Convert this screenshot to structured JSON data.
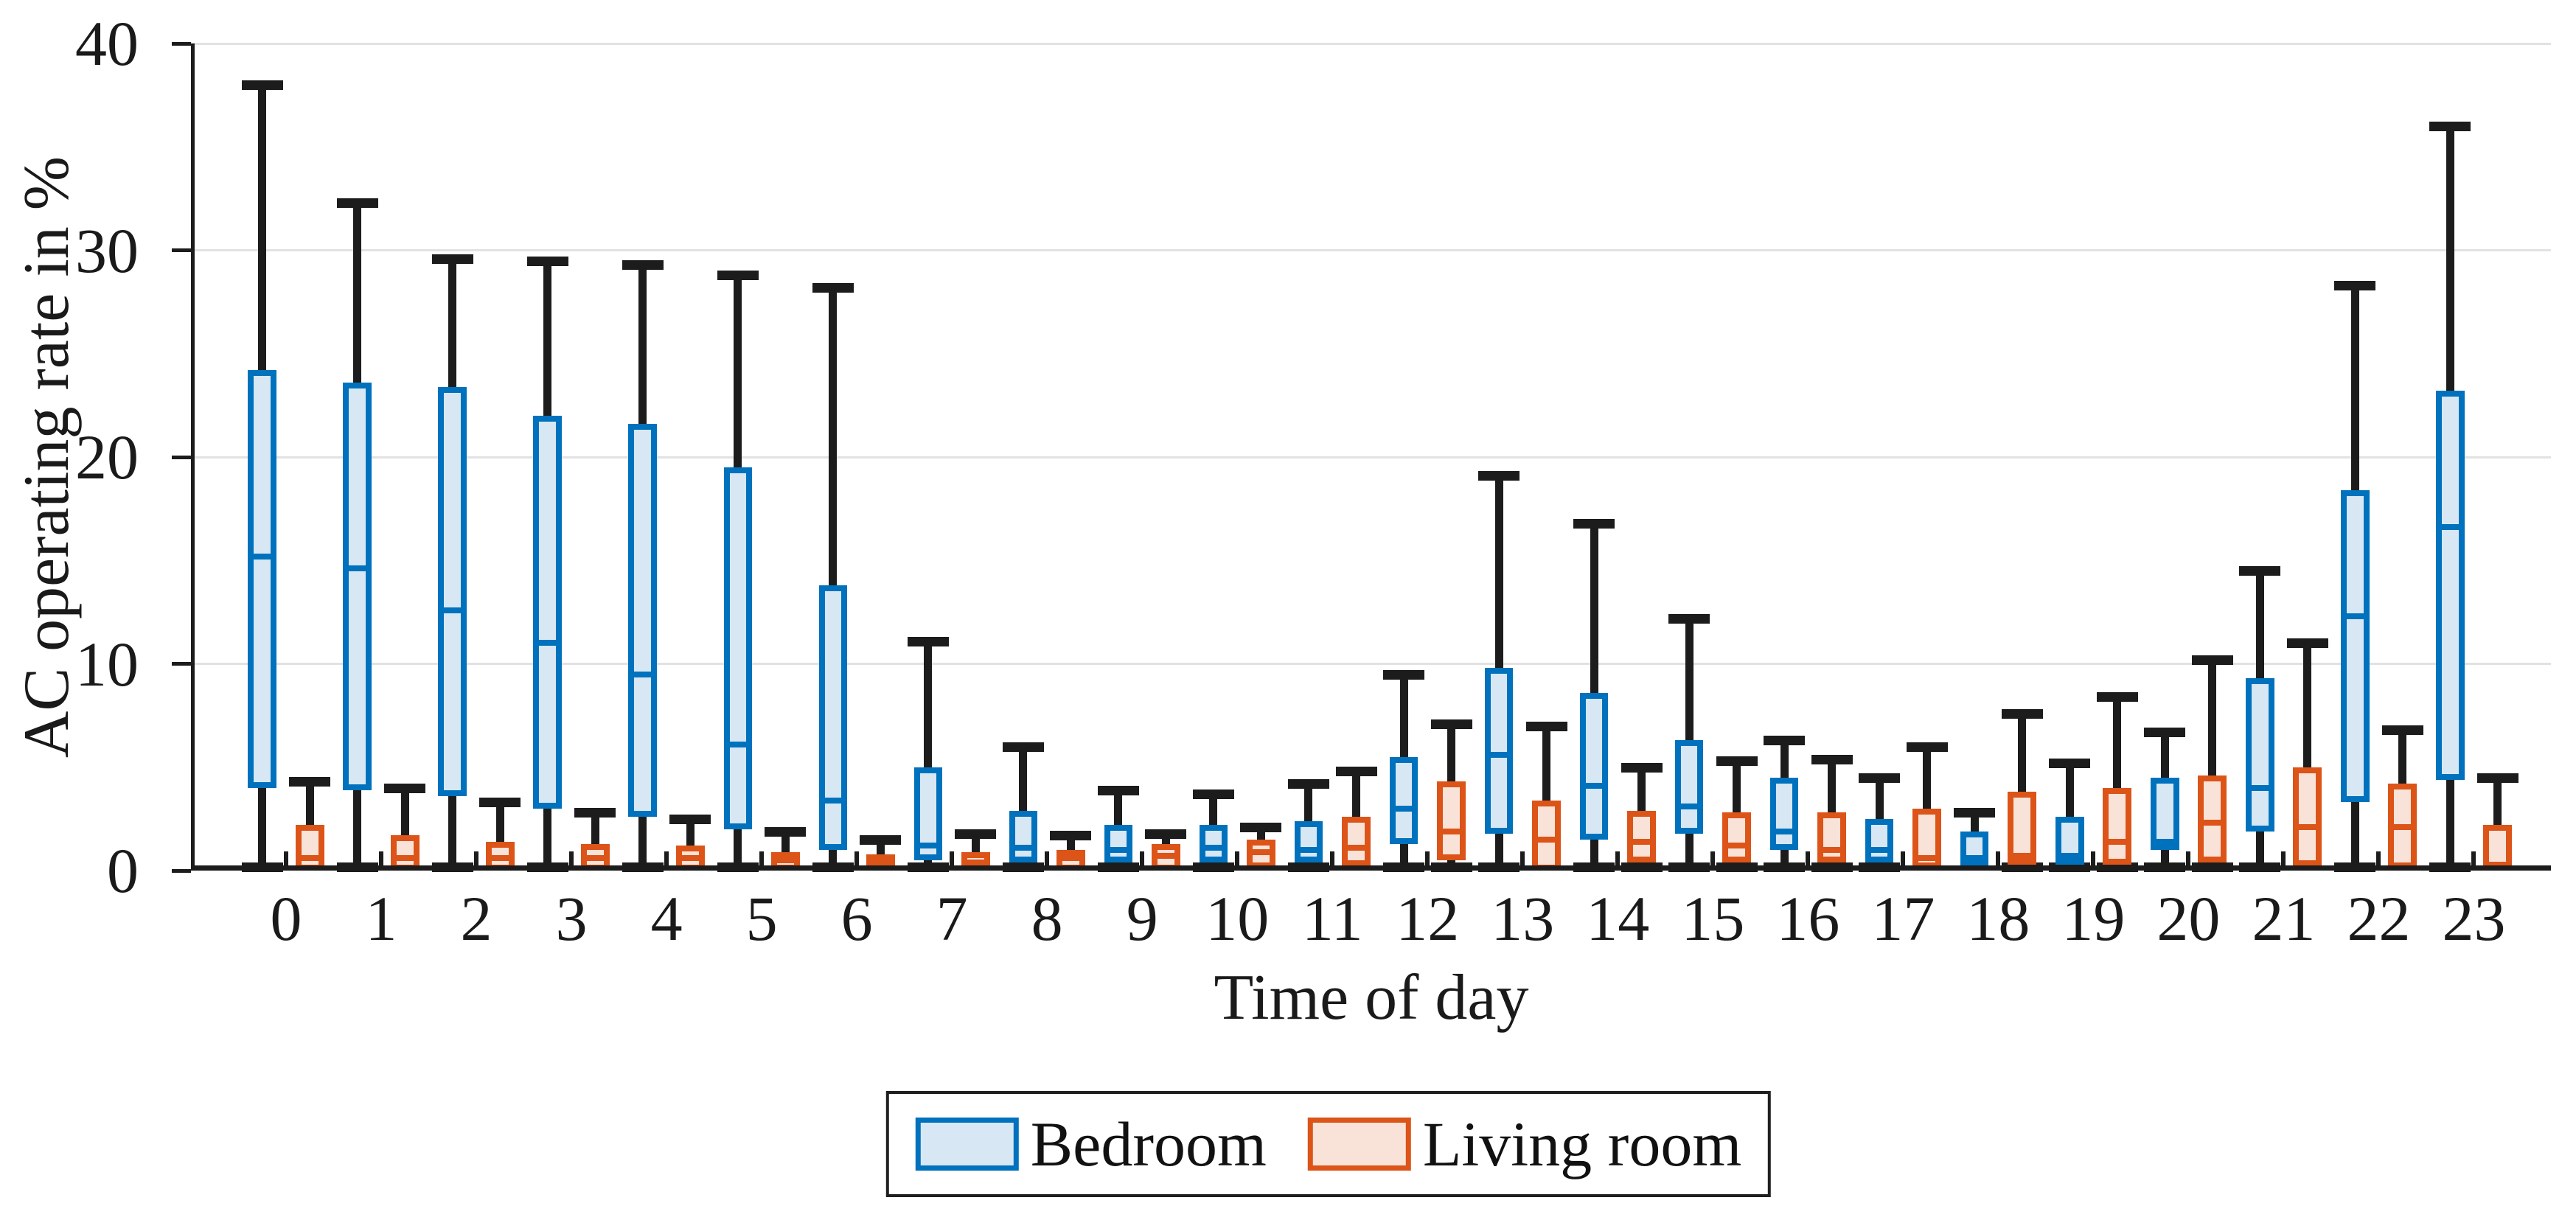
{
  "page": {
    "background": "#ffffff"
  },
  "chart_data": {
    "type": "boxplot",
    "title": "",
    "xlabel": "Time of day",
    "ylabel": "AC operating rate in %",
    "ylim": [
      0,
      40
    ],
    "yticks": [
      0,
      10,
      20,
      30,
      40
    ],
    "grid": "horizontal",
    "legend_position": "below-xlabel",
    "categories": [
      "0",
      "1",
      "2",
      "3",
      "4",
      "5",
      "6",
      "7",
      "8",
      "9",
      "10",
      "11",
      "12",
      "13",
      "14",
      "15",
      "16",
      "17",
      "18",
      "19",
      "20",
      "21",
      "22",
      "23"
    ],
    "colors": {
      "axis": "#1c1c1c",
      "whisker": "#1c1c1c",
      "gridline": "#e2e2e2",
      "bedroom_edge": "#0072BD",
      "bedroom_fill": "#D7E7F4",
      "living_edge": "#DC5418",
      "living_fill": "#F9E3D8"
    },
    "series": [
      {
        "name": "Bedroom",
        "edge_color": "#0072BD",
        "fill_color": "#D7E7F4",
        "boxes": [
          {
            "low": 0,
            "q1": 4.0,
            "median": 15.2,
            "q3": 24.2,
            "high": 38.0
          },
          {
            "low": 0,
            "q1": 3.9,
            "median": 14.6,
            "q3": 23.6,
            "high": 32.3
          },
          {
            "low": 0,
            "q1": 3.6,
            "median": 12.6,
            "q3": 23.4,
            "high": 29.6
          },
          {
            "low": 0,
            "q1": 3.0,
            "median": 11.0,
            "q3": 22.0,
            "high": 29.5
          },
          {
            "low": 0,
            "q1": 2.6,
            "median": 9.5,
            "q3": 21.6,
            "high": 29.3
          },
          {
            "low": 0,
            "q1": 2.0,
            "median": 6.1,
            "q3": 19.5,
            "high": 28.8
          },
          {
            "low": 0,
            "q1": 1.0,
            "median": 3.4,
            "q3": 13.8,
            "high": 28.2
          },
          {
            "low": 0,
            "q1": 0.5,
            "median": 1.2,
            "q3": 5.0,
            "high": 11.1
          },
          {
            "low": 0,
            "q1": 0.4,
            "median": 1.1,
            "q3": 2.9,
            "high": 6.0
          },
          {
            "low": 0,
            "q1": 0.4,
            "median": 1.0,
            "q3": 2.2,
            "high": 3.9
          },
          {
            "low": 0,
            "q1": 0.4,
            "median": 1.1,
            "q3": 2.2,
            "high": 3.7
          },
          {
            "low": 0,
            "q1": 0.4,
            "median": 1.0,
            "q3": 2.4,
            "high": 4.2
          },
          {
            "low": 0,
            "q1": 1.3,
            "median": 3.0,
            "q3": 5.5,
            "high": 9.5
          },
          {
            "low": 0,
            "q1": 1.8,
            "median": 5.6,
            "q3": 9.8,
            "high": 19.1
          },
          {
            "low": 0,
            "q1": 1.5,
            "median": 4.1,
            "q3": 8.6,
            "high": 16.8
          },
          {
            "low": 0,
            "q1": 1.8,
            "median": 3.1,
            "q3": 6.3,
            "high": 12.2
          },
          {
            "low": 0,
            "q1": 1.0,
            "median": 1.9,
            "q3": 4.5,
            "high": 6.3
          },
          {
            "low": 0,
            "q1": 0.4,
            "median": 1.0,
            "q3": 2.5,
            "high": 4.5
          },
          {
            "low": 0,
            "q1": 0.2,
            "median": 0.6,
            "q3": 1.9,
            "high": 2.8
          },
          {
            "low": 0,
            "q1": 0.3,
            "median": 0.7,
            "q3": 2.6,
            "high": 5.2
          },
          {
            "low": 0,
            "q1": 1.0,
            "median": 1.4,
            "q3": 4.5,
            "high": 6.7
          },
          {
            "low": 0,
            "q1": 1.9,
            "median": 4.0,
            "q3": 9.3,
            "high": 14.5
          },
          {
            "low": 0,
            "q1": 3.3,
            "median": 12.3,
            "q3": 18.4,
            "high": 28.3
          },
          {
            "low": 0,
            "q1": 4.4,
            "median": 16.6,
            "q3": 23.2,
            "high": 36.0
          }
        ]
      },
      {
        "name": "Living room",
        "edge_color": "#DC5418",
        "fill_color": "#F9E3D8",
        "boxes": [
          {
            "low": 0,
            "q1": 0,
            "median": 0.6,
            "q3": 2.2,
            "high": 4.3
          },
          {
            "low": 0,
            "q1": 0,
            "median": 0.6,
            "q3": 1.7,
            "high": 4.0
          },
          {
            "low": 0,
            "q1": 0,
            "median": 0.6,
            "q3": 1.4,
            "high": 3.3
          },
          {
            "low": 0,
            "q1": 0,
            "median": 0.6,
            "q3": 1.3,
            "high": 2.8
          },
          {
            "low": 0,
            "q1": 0,
            "median": 0.6,
            "q3": 1.2,
            "high": 2.5
          },
          {
            "low": 0,
            "q1": 0,
            "median": 0.5,
            "q3": 0.9,
            "high": 1.9
          },
          {
            "low": 0,
            "q1": 0,
            "median": 0.4,
            "q3": 0.8,
            "high": 1.5
          },
          {
            "low": 0,
            "q1": 0,
            "median": 0.4,
            "q3": 0.9,
            "high": 1.8
          },
          {
            "low": 0,
            "q1": 0,
            "median": 0.6,
            "q3": 1.0,
            "high": 1.7
          },
          {
            "low": 0,
            "q1": 0,
            "median": 0.7,
            "q3": 1.3,
            "high": 1.8
          },
          {
            "low": 0,
            "q1": 0.1,
            "median": 0.9,
            "q3": 1.5,
            "high": 2.1
          },
          {
            "low": 0,
            "q1": 0.2,
            "median": 1.1,
            "q3": 2.6,
            "high": 4.8
          },
          {
            "low": 0,
            "q1": 0.5,
            "median": 1.9,
            "q3": 4.3,
            "high": 7.1
          },
          {
            "low": 0,
            "q1": 0,
            "median": 1.5,
            "q3": 3.4,
            "high": 7.0
          },
          {
            "low": 0,
            "q1": 0.4,
            "median": 1.4,
            "q3": 2.9,
            "high": 5.0
          },
          {
            "low": 0,
            "q1": 0.4,
            "median": 1.2,
            "q3": 2.8,
            "high": 5.3
          },
          {
            "low": 0,
            "q1": 0.4,
            "median": 1.0,
            "q3": 2.8,
            "high": 5.4
          },
          {
            "low": 0,
            "q1": 0.1,
            "median": 0.6,
            "q3": 3.0,
            "high": 6.0
          },
          {
            "low": 0,
            "q1": 0.3,
            "median": 0.7,
            "q3": 3.8,
            "high": 7.6
          },
          {
            "low": 0,
            "q1": 0.3,
            "median": 1.4,
            "q3": 4.0,
            "high": 8.4
          },
          {
            "low": 0,
            "q1": 0.4,
            "median": 2.3,
            "q3": 4.6,
            "high": 10.2
          },
          {
            "low": 0,
            "q1": 0.2,
            "median": 2.1,
            "q3": 5.0,
            "high": 11.0
          },
          {
            "low": 0,
            "q1": 0.1,
            "median": 2.1,
            "q3": 4.2,
            "high": 6.8
          },
          {
            "low": 0,
            "q1": 0.1,
            "median": 0.3,
            "q3": 2.2,
            "high": 4.5
          }
        ]
      }
    ]
  }
}
